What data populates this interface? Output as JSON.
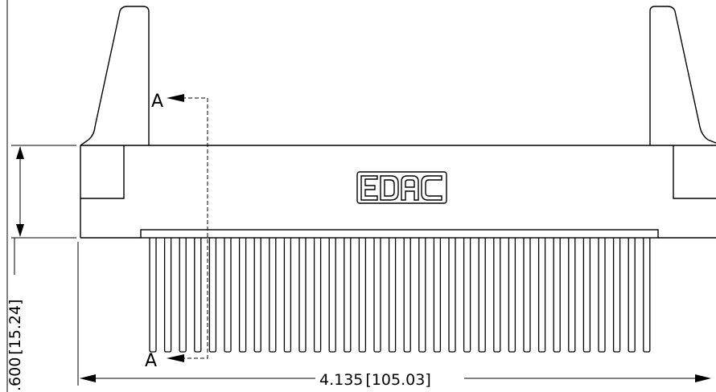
{
  "drawing": {
    "section_label": "A",
    "logo_text": "EDAC",
    "pin_count": 34,
    "dimensions": {
      "height": {
        "inch": ".600",
        "mm": "15.24"
      },
      "width": {
        "inch": "4.135",
        "mm": "105.03"
      }
    }
  }
}
